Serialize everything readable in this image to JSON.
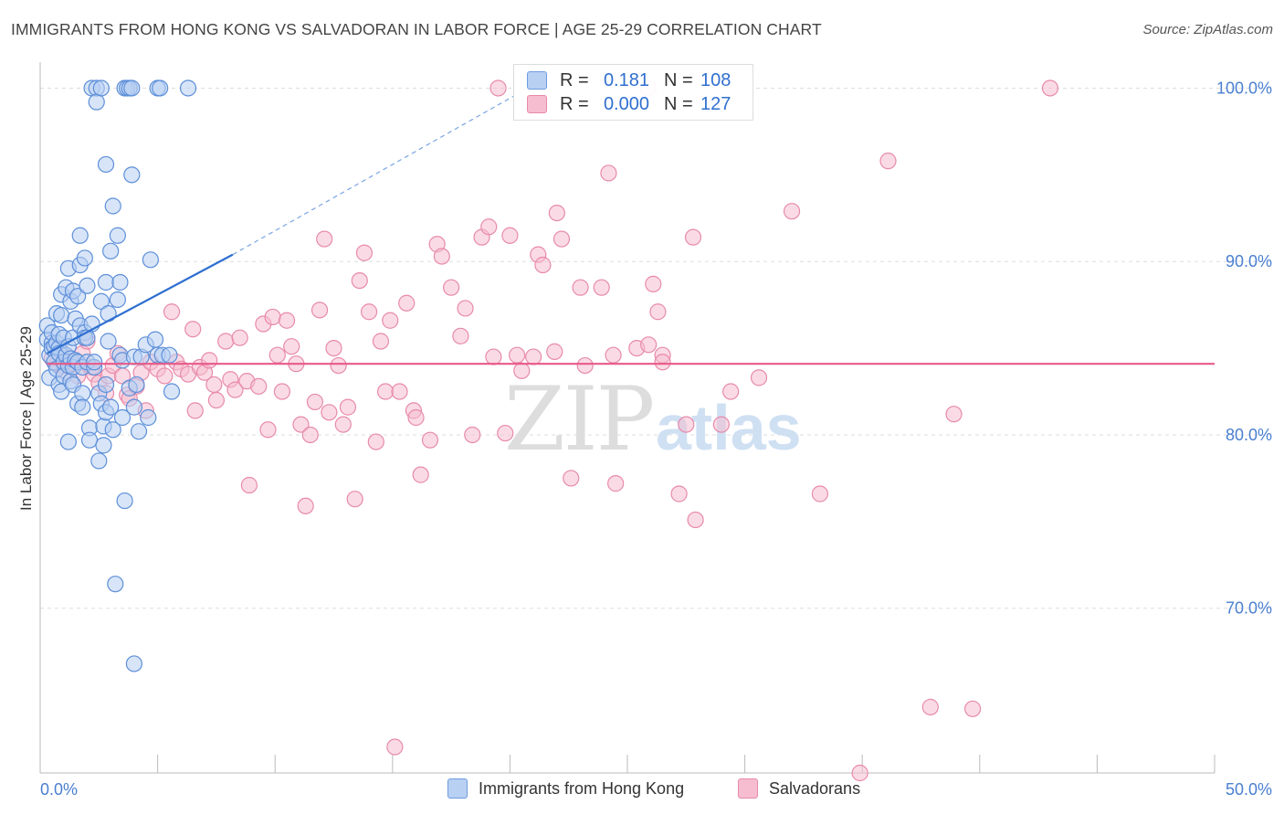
{
  "title": "IMMIGRANTS FROM HONG KONG VS SALVADORAN IN LABOR FORCE | AGE 25-29 CORRELATION CHART",
  "source": "Source: ZipAtlas.com",
  "colors": {
    "blue": "#2f6fd0",
    "blue_fill": "#b8d0f2",
    "pink": "#e85a87",
    "pink_fill": "#f6bdd0",
    "grid": "#dddddd",
    "tick_label": "#4a7fd0"
  },
  "legend": {
    "rows": [
      {
        "r_label": "R =",
        "r_value": "0.181",
        "n_label": "N =",
        "n_value": "108"
      },
      {
        "r_label": "R =",
        "r_value": "0.000",
        "n_label": "N =",
        "n_value": "127"
      }
    ]
  },
  "watermark": {
    "zip": "ZIP",
    "atlas": "atlas"
  },
  "chart_data": {
    "type": "scatter",
    "xlabel": "",
    "ylabel": "In Labor Force | Age 25-29",
    "xlim": [
      0,
      50
    ],
    "ylim": [
      60.5,
      101.5
    ],
    "x_tick_labels": [
      "0.0%",
      "50.0%"
    ],
    "y_ticks": [
      70,
      80,
      90,
      100
    ],
    "y_tick_labels": [
      "70.0%",
      "80.0%",
      "90.0%",
      "100.0%"
    ],
    "series": [
      {
        "name": "Immigrants from Hong Kong",
        "color": "blue",
        "trend": {
          "x": [
            0.3,
            8.2
          ],
          "y": [
            84.7,
            90.4
          ],
          "dashed_to": [
            20.5,
            99.8
          ]
        },
        "points": [
          [
            0.3,
            85.5
          ],
          [
            0.3,
            86.3
          ],
          [
            0.4,
            84.6
          ],
          [
            0.4,
            83.3
          ],
          [
            0.5,
            85.3
          ],
          [
            0.5,
            85.9
          ],
          [
            0.5,
            85.0
          ],
          [
            0.6,
            85.1
          ],
          [
            0.6,
            84.2
          ],
          [
            0.7,
            83.8
          ],
          [
            0.7,
            87.0
          ],
          [
            0.7,
            85.3
          ],
          [
            0.8,
            85.0
          ],
          [
            0.8,
            85.8
          ],
          [
            0.8,
            84.7
          ],
          [
            0.8,
            82.9
          ],
          [
            0.9,
            88.1
          ],
          [
            0.9,
            86.9
          ],
          [
            0.9,
            82.5
          ],
          [
            1.0,
            85.6
          ],
          [
            1.0,
            84.2
          ],
          [
            1.0,
            83.4
          ],
          [
            1.1,
            88.5
          ],
          [
            1.1,
            84.6
          ],
          [
            1.2,
            89.6
          ],
          [
            1.2,
            85.1
          ],
          [
            1.2,
            84.0
          ],
          [
            1.2,
            79.6
          ],
          [
            1.3,
            87.7
          ],
          [
            1.3,
            84.4
          ],
          [
            1.3,
            83.1
          ],
          [
            1.4,
            88.3
          ],
          [
            1.4,
            85.6
          ],
          [
            1.4,
            82.9
          ],
          [
            1.4,
            83.9
          ],
          [
            1.5,
            86.7
          ],
          [
            1.5,
            84.3
          ],
          [
            1.6,
            88.0
          ],
          [
            1.6,
            84.2
          ],
          [
            1.6,
            81.8
          ],
          [
            1.7,
            91.5
          ],
          [
            1.7,
            89.8
          ],
          [
            1.7,
            86.3
          ],
          [
            1.8,
            83.9
          ],
          [
            1.8,
            82.4
          ],
          [
            1.8,
            81.6
          ],
          [
            1.9,
            90.2
          ],
          [
            1.9,
            85.9
          ],
          [
            1.9,
            85.6
          ],
          [
            2.0,
            88.6
          ],
          [
            2.0,
            85.6
          ],
          [
            2.0,
            84.2
          ],
          [
            2.1,
            80.4
          ],
          [
            2.1,
            79.7
          ],
          [
            2.2,
            100.0
          ],
          [
            2.2,
            86.4
          ],
          [
            2.3,
            83.9
          ],
          [
            2.3,
            84.2
          ],
          [
            2.4,
            100.0
          ],
          [
            2.4,
            99.2
          ],
          [
            2.5,
            82.4
          ],
          [
            2.5,
            78.5
          ],
          [
            2.6,
            100.0
          ],
          [
            2.6,
            87.7
          ],
          [
            2.6,
            81.8
          ],
          [
            2.7,
            80.5
          ],
          [
            2.7,
            79.4
          ],
          [
            2.8,
            95.6
          ],
          [
            2.8,
            88.8
          ],
          [
            2.8,
            82.9
          ],
          [
            2.8,
            81.3
          ],
          [
            2.9,
            87.0
          ],
          [
            2.9,
            85.4
          ],
          [
            3.0,
            90.6
          ],
          [
            3.0,
            81.6
          ],
          [
            3.1,
            93.2
          ],
          [
            3.1,
            80.3
          ],
          [
            3.2,
            71.4
          ],
          [
            3.3,
            91.5
          ],
          [
            3.3,
            87.8
          ],
          [
            3.4,
            88.8
          ],
          [
            3.4,
            84.6
          ],
          [
            3.5,
            84.3
          ],
          [
            3.5,
            81.0
          ],
          [
            3.6,
            100.0
          ],
          [
            3.6,
            76.2
          ],
          [
            3.7,
            100.0
          ],
          [
            3.8,
            100.0
          ],
          [
            3.8,
            82.7
          ],
          [
            3.9,
            95.0
          ],
          [
            4.0,
            66.8
          ],
          [
            4.0,
            84.5
          ],
          [
            4.0,
            81.6
          ],
          [
            4.1,
            82.9
          ],
          [
            4.2,
            80.2
          ],
          [
            4.3,
            84.5
          ],
          [
            4.5,
            85.2
          ],
          [
            4.6,
            81.0
          ],
          [
            4.7,
            90.1
          ],
          [
            4.9,
            85.5
          ],
          [
            5.0,
            100.0
          ],
          [
            5.0,
            84.6
          ],
          [
            5.1,
            100.0
          ],
          [
            5.2,
            84.6
          ],
          [
            5.5,
            84.6
          ],
          [
            5.6,
            82.5
          ],
          [
            6.3,
            100.0
          ],
          [
            3.9,
            100.0
          ]
        ]
      },
      {
        "name": "Salvadorans",
        "color": "pink",
        "trend": {
          "x": [
            0.3,
            50.0
          ],
          "y": [
            84.1,
            84.1
          ]
        },
        "points": [
          [
            0.5,
            84.4
          ],
          [
            0.7,
            84.1
          ],
          [
            0.9,
            84.8
          ],
          [
            1.0,
            84.0
          ],
          [
            1.1,
            83.6
          ],
          [
            1.3,
            84.2
          ],
          [
            1.4,
            83.9
          ],
          [
            1.6,
            83.4
          ],
          [
            1.8,
            84.7
          ],
          [
            2.0,
            85.4
          ],
          [
            2.2,
            83.9
          ],
          [
            2.3,
            83.5
          ],
          [
            2.5,
            83.0
          ],
          [
            2.8,
            82.4
          ],
          [
            2.9,
            83.4
          ],
          [
            3.1,
            84.0
          ],
          [
            3.3,
            84.7
          ],
          [
            3.5,
            83.4
          ],
          [
            3.7,
            82.3
          ],
          [
            3.8,
            82.1
          ],
          [
            4.1,
            82.8
          ],
          [
            4.3,
            83.6
          ],
          [
            4.5,
            81.4
          ],
          [
            4.7,
            84.2
          ],
          [
            5.0,
            83.8
          ],
          [
            5.3,
            83.4
          ],
          [
            5.6,
            87.1
          ],
          [
            5.8,
            84.2
          ],
          [
            6.0,
            83.8
          ],
          [
            6.3,
            83.5
          ],
          [
            6.5,
            86.1
          ],
          [
            6.6,
            81.4
          ],
          [
            6.8,
            83.9
          ],
          [
            7.0,
            83.6
          ],
          [
            7.2,
            84.3
          ],
          [
            7.4,
            82.9
          ],
          [
            7.5,
            82.0
          ],
          [
            7.9,
            85.4
          ],
          [
            8.1,
            83.2
          ],
          [
            8.3,
            82.6
          ],
          [
            8.5,
            85.6
          ],
          [
            8.8,
            83.1
          ],
          [
            8.9,
            77.1
          ],
          [
            9.3,
            82.8
          ],
          [
            9.5,
            86.4
          ],
          [
            9.7,
            80.3
          ],
          [
            9.9,
            86.8
          ],
          [
            10.1,
            84.6
          ],
          [
            10.3,
            82.5
          ],
          [
            10.5,
            86.6
          ],
          [
            10.7,
            85.1
          ],
          [
            10.9,
            84.1
          ],
          [
            11.1,
            80.6
          ],
          [
            11.3,
            75.9
          ],
          [
            11.5,
            80.0
          ],
          [
            11.7,
            81.9
          ],
          [
            11.9,
            87.2
          ],
          [
            12.1,
            91.3
          ],
          [
            12.3,
            81.3
          ],
          [
            12.5,
            85.0
          ],
          [
            12.7,
            84.0
          ],
          [
            12.9,
            80.6
          ],
          [
            13.1,
            81.6
          ],
          [
            13.4,
            76.3
          ],
          [
            13.6,
            88.9
          ],
          [
            13.8,
            90.5
          ],
          [
            14.0,
            87.1
          ],
          [
            14.3,
            79.6
          ],
          [
            14.5,
            85.4
          ],
          [
            14.7,
            82.5
          ],
          [
            14.9,
            86.6
          ],
          [
            15.1,
            62.0
          ],
          [
            15.3,
            82.5
          ],
          [
            15.6,
            87.6
          ],
          [
            15.9,
            81.4
          ],
          [
            16.0,
            81.0
          ],
          [
            16.2,
            77.7
          ],
          [
            16.6,
            79.7
          ],
          [
            16.9,
            91.0
          ],
          [
            17.1,
            90.3
          ],
          [
            17.5,
            88.5
          ],
          [
            17.9,
            85.7
          ],
          [
            18.1,
            87.3
          ],
          [
            18.4,
            80.0
          ],
          [
            18.8,
            91.4
          ],
          [
            19.1,
            92.0
          ],
          [
            19.3,
            84.5
          ],
          [
            19.5,
            100.0
          ],
          [
            19.8,
            80.1
          ],
          [
            20.0,
            91.5
          ],
          [
            20.3,
            84.6
          ],
          [
            20.5,
            83.7
          ],
          [
            21.0,
            84.5
          ],
          [
            21.2,
            90.4
          ],
          [
            21.4,
            89.8
          ],
          [
            21.9,
            84.8
          ],
          [
            22.0,
            92.8
          ],
          [
            22.2,
            91.3
          ],
          [
            22.6,
            77.5
          ],
          [
            23.0,
            88.5
          ],
          [
            23.2,
            84.0
          ],
          [
            23.9,
            88.5
          ],
          [
            24.2,
            95.1
          ],
          [
            24.4,
            84.6
          ],
          [
            24.5,
            77.2
          ],
          [
            25.4,
            85.0
          ],
          [
            25.9,
            85.2
          ],
          [
            25.9,
            100.0
          ],
          [
            26.1,
            88.7
          ],
          [
            26.3,
            87.1
          ],
          [
            26.5,
            84.6
          ],
          [
            26.5,
            84.2
          ],
          [
            27.2,
            76.6
          ],
          [
            27.5,
            80.6
          ],
          [
            27.8,
            91.4
          ],
          [
            27.9,
            75.1
          ],
          [
            29.0,
            80.6
          ],
          [
            29.4,
            82.5
          ],
          [
            30.6,
            83.3
          ],
          [
            32.0,
            92.9
          ],
          [
            33.2,
            76.6
          ],
          [
            36.1,
            95.8
          ],
          [
            37.9,
            64.3
          ],
          [
            38.9,
            81.2
          ],
          [
            39.7,
            64.2
          ],
          [
            43.0,
            100.0
          ],
          [
            34.9,
            60.5
          ]
        ]
      }
    ]
  }
}
